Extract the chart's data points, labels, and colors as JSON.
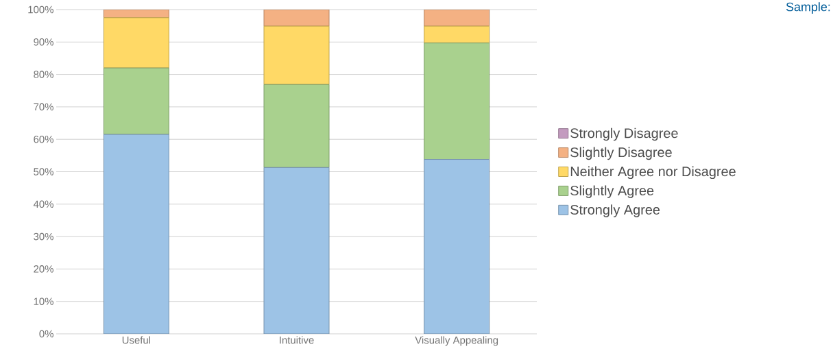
{
  "chart_data": {
    "type": "bar",
    "stacked": true,
    "categories": [
      "Useful",
      "Intuitive",
      "Visually Appealing"
    ],
    "series": [
      {
        "name": "Strongly Agree",
        "color": "#9dc3e6",
        "values": [
          61.5,
          51.3,
          53.8
        ]
      },
      {
        "name": "Slightly Agree",
        "color": "#a9d18e",
        "values": [
          20.5,
          25.6,
          35.9
        ]
      },
      {
        "name": "Neither Agree nor Disagree",
        "color": "#ffd966",
        "values": [
          15.5,
          18.0,
          5.2
        ]
      },
      {
        "name": "Slightly Disagree",
        "color": "#f4b183",
        "values": [
          2.5,
          5.1,
          5.1
        ]
      },
      {
        "name": "Strongly Disagree",
        "color": "#c39bbf",
        "values": [
          0,
          0,
          0
        ]
      }
    ],
    "ylim": [
      0,
      100
    ],
    "yticks": [
      {
        "value": 0,
        "label": "0%"
      },
      {
        "value": 10,
        "label": "10%"
      },
      {
        "value": 20,
        "label": "20%"
      },
      {
        "value": 30,
        "label": "30%"
      },
      {
        "value": 40,
        "label": "40%"
      },
      {
        "value": 50,
        "label": "50%"
      },
      {
        "value": 60,
        "label": "60%"
      },
      {
        "value": 70,
        "label": "70%"
      },
      {
        "value": 80,
        "label": "80%"
      },
      {
        "value": 90,
        "label": "90%"
      },
      {
        "value": 100,
        "label": "100%"
      }
    ],
    "grid": "y",
    "legend": "right",
    "annotations": [
      "Sample:"
    ]
  }
}
